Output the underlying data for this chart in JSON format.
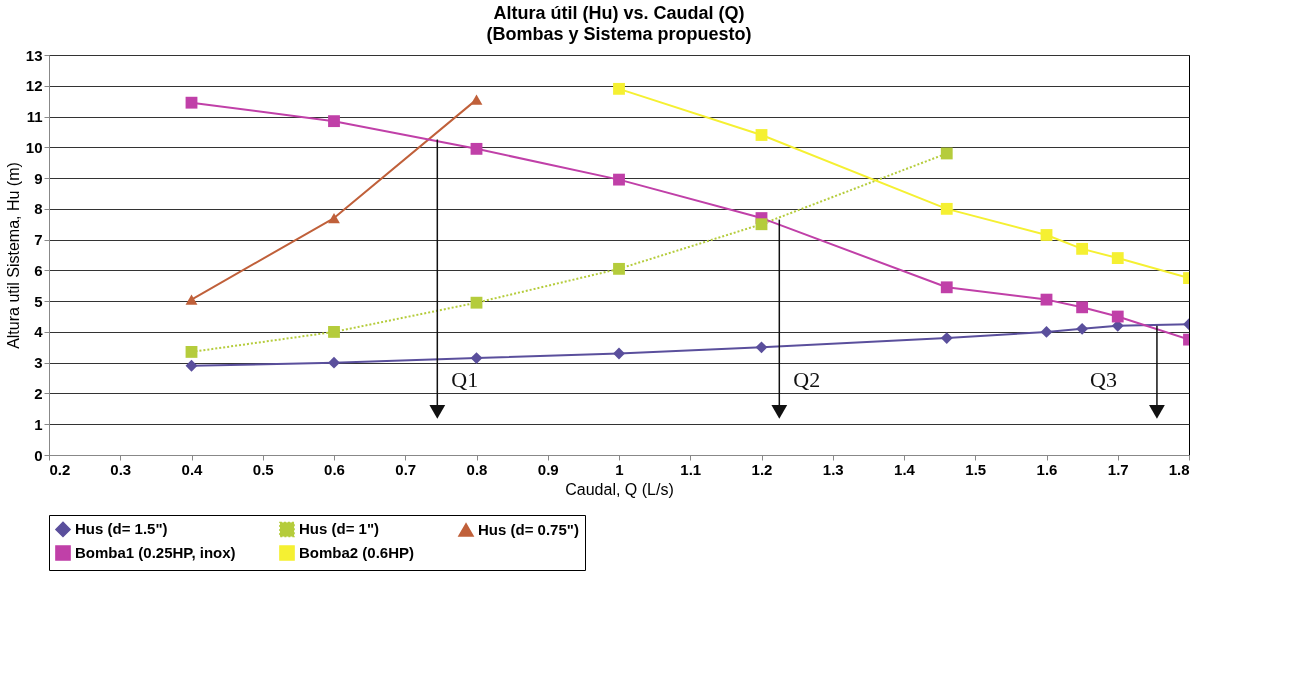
{
  "chart_data": {
    "type": "line",
    "title": "Altura útil (Hu)  vs. Caudal (Q)",
    "subtitle": "(Bombas y  Sistema propuesto)",
    "xlabel": "Caudal, Q (L/s)",
    "ylabel": "Altura util Sistema, Hu (m)",
    "x": [
      0.4,
      0.6,
      0.8,
      1.0,
      1.2,
      1.46,
      1.6,
      1.65,
      1.7,
      1.8
    ],
    "series": [
      {
        "name": "Hus (d= 1.5\")",
        "color": "#5a4f9c",
        "marker": "diamond",
        "line_style": "solid",
        "values": [
          2.9,
          3.0,
          3.15,
          3.3,
          3.5,
          3.8,
          4.0,
          4.1,
          4.2,
          4.25
        ]
      },
      {
        "name": "Hus (d= 1\")",
        "color": "#b5cc3c",
        "marker": "square",
        "line_style": "dotted",
        "x": [
          0.4,
          0.6,
          0.8,
          1.0,
          1.2,
          1.46
        ],
        "values": [
          3.35,
          4.0,
          4.95,
          6.05,
          7.5,
          9.8
        ]
      },
      {
        "name": "Hus (d= 0.75\")",
        "color": "#c0603a",
        "marker": "triangle",
        "line_style": "solid",
        "x": [
          0.4,
          0.6,
          0.8
        ],
        "values": [
          5.05,
          7.7,
          11.55
        ]
      },
      {
        "name": "Bomba1 (0.25HP, inox)",
        "color": "#c040a8",
        "marker": "square",
        "line_style": "solid",
        "values": [
          11.45,
          10.85,
          9.95,
          8.95,
          7.7,
          5.45,
          5.05,
          4.8,
          4.5,
          3.75
        ]
      },
      {
        "name": "Bomba2 (0.6HP)",
        "color": "#f5f032",
        "marker": "square",
        "line_style": "solid",
        "x": [
          1.0,
          1.2,
          1.46,
          1.6,
          1.65,
          1.7,
          1.8
        ],
        "values": [
          11.9,
          10.4,
          8.0,
          7.15,
          6.7,
          6.4,
          5.75
        ]
      }
    ],
    "xlim": [
      0.2,
      1.8
    ],
    "xticks": [
      0.2,
      0.3,
      0.4,
      0.5,
      0.6,
      0.7,
      0.8,
      0.9,
      1,
      1.1,
      1.2,
      1.3,
      1.4,
      1.5,
      1.6,
      1.7,
      1.8
    ],
    "ylim": [
      0,
      13
    ],
    "yticks": [
      0,
      1,
      2,
      3,
      4,
      5,
      6,
      7,
      8,
      9,
      10,
      11,
      12,
      13
    ],
    "annotations": [
      {
        "text": "Q1",
        "x": 0.745,
        "y": 10.25
      },
      {
        "text": "Q2",
        "x": 1.225,
        "y": 7.65
      },
      {
        "text": "Q3",
        "x": 1.755,
        "y": 4.2
      }
    ],
    "grid": "y",
    "legend": "bottom"
  }
}
